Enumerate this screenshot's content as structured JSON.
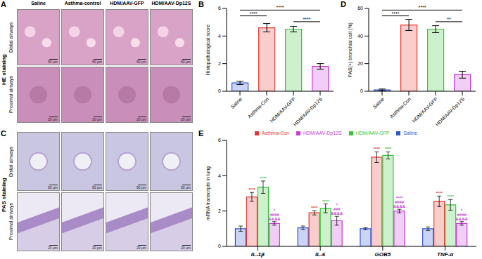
{
  "images": {
    "columns": [
      "Saline",
      "Asthma-control",
      "HDM/AAV-GFP",
      "HDM/AAV-Dp12S"
    ],
    "rows": [
      "Distal airways",
      "Proximal airways"
    ],
    "panels": [
      {
        "panel": "A",
        "stain": "HE staining"
      },
      {
        "panel": "C",
        "stain": "PAS staining"
      }
    ],
    "scale_bars": [
      "50 μm",
      "20 μm"
    ]
  },
  "chart_data": [
    {
      "panel": "B",
      "type": "bar",
      "ylabel": "Histopathological score",
      "categories": [
        "Saline",
        "Asthma-Con",
        "HDM/AAV-GFP",
        "HDM/AAV-Dp12S"
      ],
      "values": [
        0.6,
        4.6,
        4.5,
        1.8
      ],
      "errors": [
        0.12,
        0.3,
        0.2,
        0.2
      ],
      "colors": [
        "#2f55d4",
        "#e8372f",
        "#39c639",
        "#c53bd6"
      ],
      "ylim": [
        0,
        6
      ],
      "yticks": [
        0,
        2,
        4,
        6
      ],
      "significance": [
        {
          "from": "HDM/AAV-GFP",
          "to": "HDM/AAV-Dp12S",
          "label": "****"
        },
        {
          "from": "Saline",
          "to": "Asthma-Con",
          "label": "****"
        },
        {
          "from": "Saline",
          "to": "HDM/AAV-Dp12S",
          "label": "****"
        }
      ]
    },
    {
      "panel": "D",
      "type": "bar",
      "ylabel": "PAS(+) bronchial cell (%)",
      "categories": [
        "Saline",
        "Asthma-Con",
        "HDM/AAV-GFP",
        "HDM/AAV-Dp12S"
      ],
      "values": [
        1,
        48,
        45,
        12
      ],
      "errors": [
        0.6,
        4,
        2.5,
        2.5
      ],
      "colors": [
        "#2f55d4",
        "#e8372f",
        "#39c639",
        "#c53bd6"
      ],
      "ylim": [
        0,
        60
      ],
      "yticks": [
        0,
        20,
        40,
        60
      ],
      "significance": [
        {
          "from": "HDM/AAV-GFP",
          "to": "HDM/AAV-Dp12S",
          "label": "**"
        },
        {
          "from": "Saline",
          "to": "Asthma-Con",
          "label": "****"
        },
        {
          "from": "Saline",
          "to": "HDM/AAV-Dp12S",
          "label": "****"
        }
      ]
    },
    {
      "panel": "E",
      "type": "bar",
      "ylabel": "mRNA transcripts in lung",
      "categories": [
        "IL-1β",
        "IL-6",
        "GOB5",
        "TNF-α"
      ],
      "ylim": [
        0,
        6
      ],
      "yticks": [
        0,
        2,
        4,
        6
      ],
      "legend": "top",
      "series": [
        {
          "name": "Saline",
          "color": "#2f55d4",
          "values": [
            1.0,
            1.05,
            1.0,
            1.0
          ],
          "errors": [
            0.15,
            0.1,
            0.05,
            0.1
          ],
          "annotations": [
            [],
            [],
            [],
            []
          ]
        },
        {
          "name": "Asthma-Con",
          "color": "#e8372f",
          "values": [
            2.8,
            1.9,
            5.05,
            2.55
          ],
          "errors": [
            0.25,
            0.12,
            0.3,
            0.3
          ],
          "annotations": [
            [
              "****"
            ],
            [
              "****"
            ],
            [
              "****"
            ],
            [
              "****"
            ]
          ]
        },
        {
          "name": "HDM/AAV-GFP",
          "color": "#39c639",
          "values": [
            3.35,
            2.15,
            5.15,
            2.35
          ],
          "errors": [
            0.35,
            0.25,
            0.2,
            0.3
          ],
          "annotations": [
            [
              "****"
            ],
            [
              "****"
            ],
            [
              "****"
            ],
            [
              "****"
            ]
          ]
        },
        {
          "name": "HDM/AAV-Dp12S",
          "color": "#c53bd6",
          "values": [
            1.3,
            1.45,
            2.0,
            1.3
          ],
          "errors": [
            0.1,
            0.25,
            0.1,
            0.1
          ],
          "annotations": [
            [
              "*",
              "####",
              "&&&&"
            ],
            [
              "*",
              "###",
              "&&&&"
            ],
            [
              "****",
              "####",
              "&&&&"
            ],
            [
              "*",
              "####",
              "&&&&"
            ]
          ]
        }
      ]
    }
  ]
}
